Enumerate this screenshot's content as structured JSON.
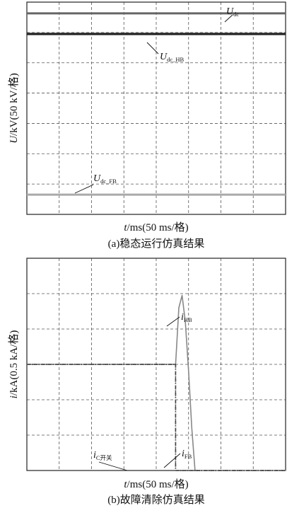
{
  "figure": {
    "panels": [
      {
        "caption": "(a)稳态运行仿真结果",
        "xlabel_italic": "t",
        "xlabel_rest": "/ms(50 ms/格)",
        "ylabel_italic": "U",
        "ylabel_rest": "/kV(50 kV/格)",
        "labels": [
          {
            "var": "U",
            "sub": "dc"
          },
          {
            "var": "U",
            "sub": "dc_HB"
          },
          {
            "var": "U",
            "sub": "dc_FB"
          }
        ]
      },
      {
        "caption": "(b)故障清除仿真结果",
        "xlabel_italic": "t",
        "xlabel_rest": "/ms(50 ms/格)",
        "ylabel_italic": "i",
        "ylabel_rest": "/kA(0.5 kA/格)",
        "labels": [
          {
            "var": "i",
            "sub": "HB"
          },
          {
            "var": "i",
            "sub": "C开关"
          },
          {
            "var": "i",
            "sub": "FB"
          }
        ]
      }
    ]
  },
  "chart_data": [
    {
      "type": "line",
      "title": "(a)稳态运行仿真结果",
      "xlabel": "t/ms(50 ms/格)",
      "ylabel": "U/kV(50 kV/格)",
      "grid": true,
      "x_divisions": 8,
      "y_divisions": 7,
      "xlim": [
        0,
        8
      ],
      "ylim": [
        0,
        7
      ],
      "series": [
        {
          "name": "Udc",
          "color": "#666666",
          "x": [
            0,
            8
          ],
          "y": [
            6.63,
            6.63
          ]
        },
        {
          "name": "Udc_HB",
          "color": "#222222",
          "x": [
            0,
            8
          ],
          "y": [
            5.95,
            5.95
          ]
        },
        {
          "name": "Udc_FB",
          "color": "#aaaaaa",
          "x": [
            0,
            8
          ],
          "y": [
            0.65,
            0.65
          ]
        }
      ]
    },
    {
      "type": "line",
      "title": "(b)故障清除仿真结果",
      "xlabel": "t/ms(50 ms/格)",
      "ylabel": "i/kA(0.5 kA/格)",
      "grid": true,
      "x_divisions": 8,
      "y_divisions": 6,
      "xlim": [
        0,
        8
      ],
      "ylim": [
        0,
        6
      ],
      "series": [
        {
          "name": "iHB",
          "color": "#888888",
          "x": [
            0,
            4.6,
            4.6,
            4.7,
            4.8,
            4.9,
            5.0,
            5.1,
            5.2,
            5.3,
            8
          ],
          "y": [
            3.0,
            3.0,
            3.0,
            4.6,
            4.95,
            4.2,
            2.8,
            1.2,
            0.0,
            0.0,
            0.0
          ]
        },
        {
          "name": "iC开关",
          "color": "#333333",
          "x": [
            0,
            4.6,
            4.6,
            8
          ],
          "y": [
            3.0,
            3.0,
            0.0,
            0.0
          ]
        },
        {
          "name": "iFB",
          "color": "#555555",
          "x": [
            0,
            4.6,
            4.6,
            8
          ],
          "y": [
            3.0,
            3.0,
            0.0,
            0.0
          ]
        }
      ]
    }
  ]
}
